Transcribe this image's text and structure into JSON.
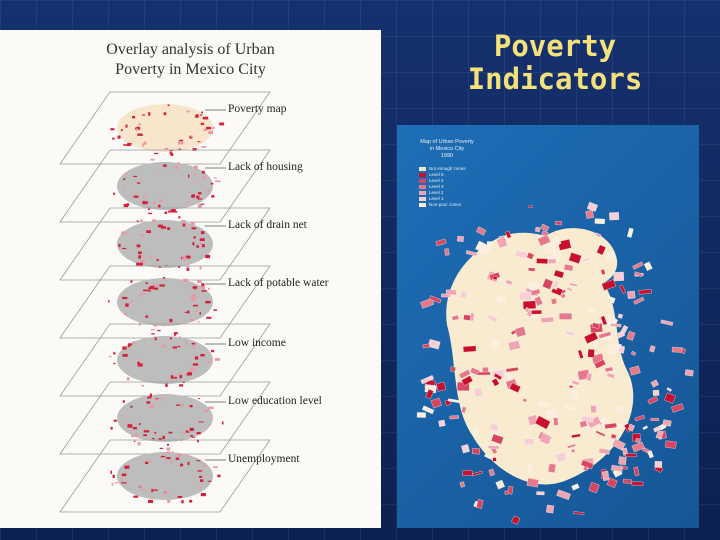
{
  "slide": {
    "title_line1": "Poverty",
    "title_line2": "Indicators"
  },
  "overlay_panel": {
    "title_line1": "Overlay analysis of Urban",
    "title_line2": "Poverty in Mexico City",
    "layers": [
      {
        "label": "Poverty map"
      },
      {
        "label": "Lack of housing"
      },
      {
        "label": "Lack of drain net"
      },
      {
        "label": "Lack of potable water"
      },
      {
        "label": "Low income"
      },
      {
        "label": "Low education level"
      },
      {
        "label": "Unemployment"
      }
    ]
  },
  "main_map": {
    "title_line1": "Map of Urban Poverty",
    "title_line2": "in Mexico City",
    "year": "1990",
    "legend": [
      {
        "label": "Not enough zones",
        "color": "#f3e6cc"
      },
      {
        "label": "Level 5",
        "color": "#c8102e"
      },
      {
        "label": "Level 4",
        "color": "#d94560"
      },
      {
        "label": "Level 3",
        "color": "#e6788c"
      },
      {
        "label": "Level 2",
        "color": "#f0a6b2"
      },
      {
        "label": "Level 1",
        "color": "#f7cfd5"
      },
      {
        "label": "Non-poor zones",
        "color": "#fbeede"
      }
    ]
  },
  "colors": {
    "background": "#13306a",
    "title_accent": "#f5e17a",
    "map_water": "#1b64a9",
    "urban_area": "#f8ebcf",
    "poverty_red": "#d3213a",
    "layer_gray": "#bdbdbd"
  }
}
